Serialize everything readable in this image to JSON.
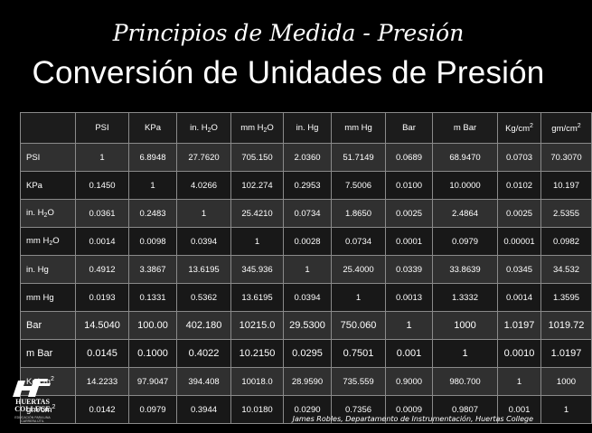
{
  "slide": {
    "subtitle": "Principios de Medida  -  Presión",
    "title": "Conversión de Unidades de Presión",
    "footer": "James Robles, Departamento de Instrumentación, Huertas College"
  },
  "logo": {
    "name": "HUERTAS COLLEGE",
    "tagline": "EDUCACIÓN PARA UNA CARRERA ÚTIL"
  },
  "table": {
    "corner": "",
    "columns": [
      {
        "text": "PSI",
        "sub": "",
        "sup": "",
        "suffix": ""
      },
      {
        "text": "KPa",
        "sub": "",
        "sup": "",
        "suffix": ""
      },
      {
        "text": "in. H",
        "sub": "2",
        "sup": "",
        "suffix": "O"
      },
      {
        "text": "mm H",
        "sub": "2",
        "sup": "",
        "suffix": "O"
      },
      {
        "text": "in. Hg",
        "sub": "",
        "sup": "",
        "suffix": ""
      },
      {
        "text": "mm Hg",
        "sub": "",
        "sup": "",
        "suffix": ""
      },
      {
        "text": "Bar",
        "sub": "",
        "sup": "",
        "suffix": ""
      },
      {
        "text": "m Bar",
        "sub": "",
        "sup": "",
        "suffix": ""
      },
      {
        "text": "Kg/cm",
        "sub": "",
        "sup": "2",
        "suffix": ""
      },
      {
        "text": "gm/cm",
        "sub": "",
        "sup": "2",
        "suffix": ""
      }
    ],
    "rows": [
      {
        "label": {
          "text": "PSI",
          "sub": "",
          "sup": "",
          "suffix": ""
        },
        "emph": false,
        "values": [
          "1",
          "6.8948",
          "27.7620",
          "705.150",
          "2.0360",
          "51.7149",
          "0.0689",
          "68.9470",
          "0.0703",
          "70.3070"
        ]
      },
      {
        "label": {
          "text": "KPa",
          "sub": "",
          "sup": "",
          "suffix": ""
        },
        "emph": false,
        "values": [
          "0.1450",
          "1",
          "4.0266",
          "102.274",
          "0.2953",
          "7.5006",
          "0.0100",
          "10.0000",
          "0.0102",
          "10.197"
        ]
      },
      {
        "label": {
          "text": "in. H",
          "sub": "2",
          "sup": "",
          "suffix": "O"
        },
        "emph": false,
        "values": [
          "0.0361",
          "0.2483",
          "1",
          "25.4210",
          "0.0734",
          "1.8650",
          "0.0025",
          "2.4864",
          "0.0025",
          "2.5355"
        ]
      },
      {
        "label": {
          "text": "mm H",
          "sub": "2",
          "sup": "",
          "suffix": "O"
        },
        "emph": false,
        "values": [
          "0.0014",
          "0.0098",
          "0.0394",
          "1",
          "0.0028",
          "0.0734",
          "0.0001",
          "0.0979",
          "0.00001",
          "0.0982"
        ]
      },
      {
        "label": {
          "text": "in. Hg",
          "sub": "",
          "sup": "",
          "suffix": ""
        },
        "emph": false,
        "values": [
          "0.4912",
          "3.3867",
          "13.6195",
          "345.936",
          "1",
          "25.4000",
          "0.0339",
          "33.8639",
          "0.0345",
          "34.532"
        ]
      },
      {
        "label": {
          "text": "mm Hg",
          "sub": "",
          "sup": "",
          "suffix": ""
        },
        "emph": false,
        "values": [
          "0.0193",
          "0.1331",
          "0.5362",
          "13.6195",
          "0.0394",
          "1",
          "0.0013",
          "1.3332",
          "0.0014",
          "1.3595"
        ]
      },
      {
        "label": {
          "text": "Bar",
          "sub": "",
          "sup": "",
          "suffix": ""
        },
        "emph": true,
        "values": [
          "14.5040",
          "100.00",
          "402.180",
          "10215.0",
          "29.5300",
          "750.060",
          "1",
          "1000",
          "1.0197",
          "1019.72"
        ]
      },
      {
        "label": {
          "text": "m Bar",
          "sub": "",
          "sup": "",
          "suffix": ""
        },
        "emph": true,
        "values": [
          "0.0145",
          "0.1000",
          "0.4022",
          "10.2150",
          "0.0295",
          "0.7501",
          "0.001",
          "1",
          "0.0010",
          "1.0197"
        ]
      },
      {
        "label": {
          "text": "Kg/cm",
          "sub": "",
          "sup": "2",
          "suffix": ""
        },
        "emph": false,
        "values": [
          "14.2233",
          "97.9047",
          "394.408",
          "10018.0",
          "28.9590",
          "735.559",
          "0.9000",
          "980.700",
          "1",
          "1000"
        ]
      },
      {
        "label": {
          "text": "gm/cm",
          "sub": "",
          "sup": "2",
          "suffix": ""
        },
        "emph": false,
        "values": [
          "0.0142",
          "0.0979",
          "0.3944",
          "10.0180",
          "0.0290",
          "0.7356",
          "0.0009",
          "0.9807",
          "0.001",
          "1"
        ]
      }
    ]
  }
}
